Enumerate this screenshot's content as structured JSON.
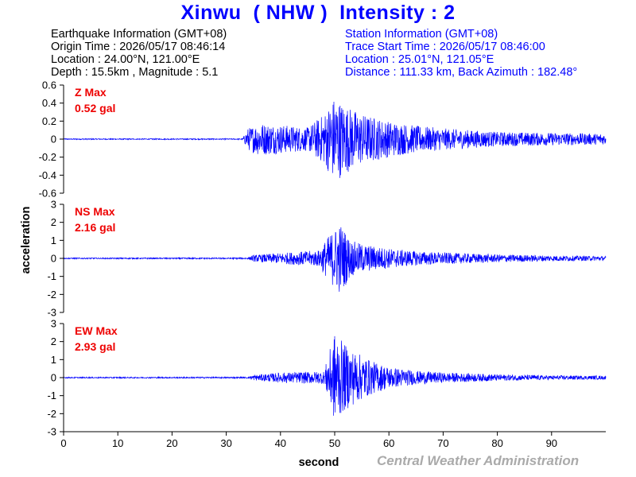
{
  "header": {
    "title": "Xinwu  ( NHW )  Intensity : 2"
  },
  "earthquake_info": {
    "heading": "Earthquake Information  (GMT+08)",
    "origin_time": "Origin Time : 2026/05/17 08:46:14",
    "location": "Location : 24.00°N, 121.00°E",
    "depth_magnitude": "Depth : 15.5km , Magnitude : 5.1"
  },
  "station_info": {
    "heading": "Station Information  (GMT+08)",
    "trace_start": "Trace Start Time : 2026/05/17 08:46:00",
    "location": "Location : 25.01°N, 121.05°E",
    "distance_azimuth": "Distance : 111.33 km, Back Azimuth : 182.48°"
  },
  "footer": {
    "credit": "Central Weather Administration"
  },
  "colors": {
    "trace": "#0000ff",
    "max_label": "#ee0000",
    "title": "#0000ff"
  },
  "chart_data": {
    "type": "line",
    "xlabel": "second",
    "ylabel": "acceleration",
    "xlim": [
      0,
      100
    ],
    "x_ticks": [
      0,
      10,
      20,
      30,
      40,
      50,
      60,
      70,
      80,
      90
    ],
    "sample_rate_hz": 20,
    "series": [
      {
        "name": "Z",
        "max_label": "Z Max",
        "max_value": "0.52 gal",
        "ylim": [
          -0.6,
          0.6
        ],
        "y_ticks": [
          -0.6,
          -0.4,
          -0.2,
          0,
          0.2,
          0.4,
          0.6
        ],
        "y_tick_labels": [
          "-0.6",
          "-0.4",
          "-0.2",
          "0",
          "0.2",
          "0.4",
          "0.6"
        ],
        "envelope": [
          [
            0,
            0.006
          ],
          [
            33,
            0.006
          ],
          [
            34,
            0.12
          ],
          [
            36,
            0.18
          ],
          [
            40,
            0.16
          ],
          [
            45,
            0.13
          ],
          [
            48,
            0.28
          ],
          [
            50,
            0.48
          ],
          [
            52,
            0.38
          ],
          [
            55,
            0.28
          ],
          [
            60,
            0.2
          ],
          [
            65,
            0.15
          ],
          [
            70,
            0.12
          ],
          [
            80,
            0.08
          ],
          [
            90,
            0.07
          ],
          [
            100,
            0.06
          ]
        ]
      },
      {
        "name": "NS",
        "max_label": "NS Max",
        "max_value": "2.16 gal",
        "ylim": [
          -3,
          3
        ],
        "y_ticks": [
          -3,
          -2,
          -1,
          0,
          1,
          2,
          3
        ],
        "y_tick_labels": [
          "-3",
          "-2",
          "-1",
          "0",
          "1",
          "2",
          "3"
        ],
        "envelope": [
          [
            0,
            0.03
          ],
          [
            34,
            0.04
          ],
          [
            35,
            0.18
          ],
          [
            40,
            0.3
          ],
          [
            47,
            0.45
          ],
          [
            49,
            1.3
          ],
          [
            51,
            2.0
          ],
          [
            53,
            1.0
          ],
          [
            55,
            0.8
          ],
          [
            60,
            0.55
          ],
          [
            65,
            0.4
          ],
          [
            70,
            0.32
          ],
          [
            80,
            0.22
          ],
          [
            90,
            0.16
          ],
          [
            100,
            0.12
          ]
        ]
      },
      {
        "name": "EW",
        "max_label": "EW Max",
        "max_value": "2.93 gal",
        "ylim": [
          -3,
          3
        ],
        "y_ticks": [
          -3,
          -2,
          -1,
          0,
          1,
          2,
          3
        ],
        "y_tick_labels": [
          "-3",
          "-2",
          "-1",
          "0",
          "1",
          "2",
          "3"
        ],
        "envelope": [
          [
            0,
            0.03
          ],
          [
            34,
            0.04
          ],
          [
            35,
            0.15
          ],
          [
            40,
            0.28
          ],
          [
            48,
            0.35
          ],
          [
            50,
            2.5
          ],
          [
            52,
            1.8
          ],
          [
            54,
            1.4
          ],
          [
            57,
            0.9
          ],
          [
            60,
            0.6
          ],
          [
            65,
            0.38
          ],
          [
            70,
            0.28
          ],
          [
            80,
            0.18
          ],
          [
            90,
            0.12
          ],
          [
            100,
            0.1
          ]
        ]
      }
    ]
  }
}
